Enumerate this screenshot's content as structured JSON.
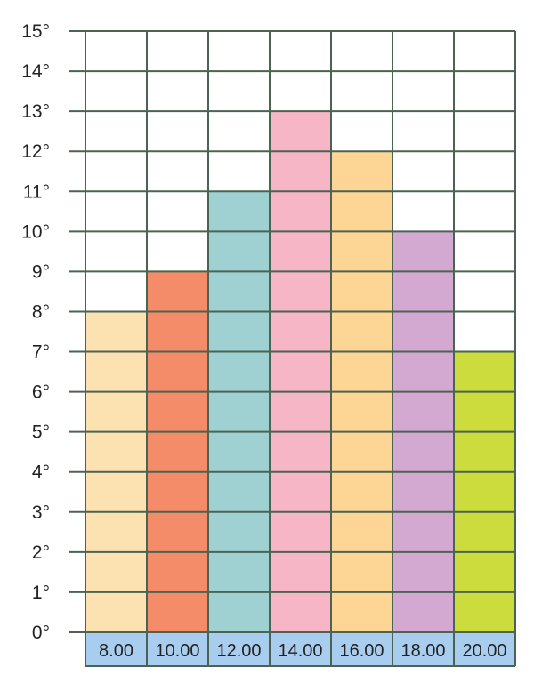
{
  "chart_data": {
    "type": "bar",
    "categories": [
      "8.00",
      "10.00",
      "12.00",
      "14.00",
      "16.00",
      "18.00",
      "20.00"
    ],
    "values": [
      8,
      9,
      11,
      13,
      12,
      10,
      7
    ],
    "bar_colors": [
      "#fde2b1",
      "#f48c6a",
      "#9fd1d3",
      "#f7b6c6",
      "#fdd594",
      "#d3a9d1",
      "#cbdc3c"
    ],
    "y_ticks": [
      "0°",
      "1°",
      "2°",
      "3°",
      "4°",
      "5°",
      "6°",
      "7°",
      "8°",
      "9°",
      "10°",
      "11°",
      "12°",
      "13°",
      "14°",
      "15°"
    ],
    "ylim": [
      0,
      15
    ],
    "title": "",
    "xlabel": "",
    "ylabel": "",
    "grid": true,
    "grid_color": "#4a6352",
    "x_label_background": "#a9cdee"
  }
}
